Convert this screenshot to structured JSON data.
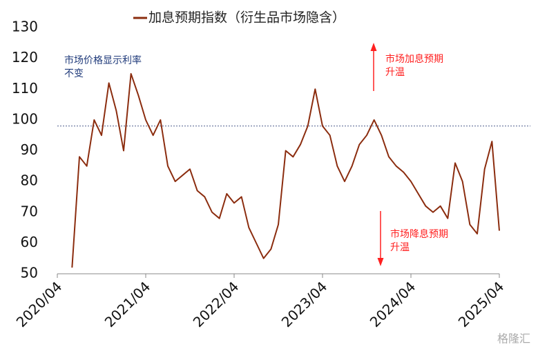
{
  "chart_data": {
    "type": "line",
    "series": [
      {
        "name": "加息预期指数（衍生品市场隐含）",
        "color": "#8b2c0e",
        "values": [
          52,
          88,
          85,
          100,
          95,
          112,
          103,
          90,
          115,
          108,
          100,
          95,
          100,
          85,
          80,
          82,
          84,
          77,
          75,
          70,
          68,
          76,
          73,
          75,
          65,
          60,
          55,
          58,
          66,
          90,
          88,
          92,
          98,
          110,
          98,
          95,
          85,
          80,
          85,
          92,
          95,
          100,
          95,
          88,
          85,
          83,
          80,
          76,
          72,
          70,
          72,
          68,
          86,
          80,
          66,
          63,
          84,
          93,
          64
        ]
      }
    ],
    "x": [
      "2020/06",
      "2020/07",
      "2020/08",
      "2020/09",
      "2020/10",
      "2020/11",
      "2020/12",
      "2021/01",
      "2021/02",
      "2021/03",
      "2021/04",
      "2021/05",
      "2021/06",
      "2021/07",
      "2021/08",
      "2021/09",
      "2021/10",
      "2021/11",
      "2021/12",
      "2022/01",
      "2022/02",
      "2022/03",
      "2022/04",
      "2022/05",
      "2022/06",
      "2022/07",
      "2022/08",
      "2022/09",
      "2022/10",
      "2022/11",
      "2022/12",
      "2023/01",
      "2023/02",
      "2023/03",
      "2023/04",
      "2023/05",
      "2023/06",
      "2023/07",
      "2023/08",
      "2023/09",
      "2023/10",
      "2023/11",
      "2023/12",
      "2024/01",
      "2024/02",
      "2024/03",
      "2024/04",
      "2024/05",
      "2024/06",
      "2024/07",
      "2024/08",
      "2024/09",
      "2024/10",
      "2024/11",
      "2024/12",
      "2025/01",
      "2025/02",
      "2025/03",
      "2025/04"
    ],
    "xlim": [
      "2020/04",
      "2025/04"
    ],
    "xticks": [
      "2020/04",
      "2021/04",
      "2022/04",
      "2023/04",
      "2024/04",
      "2025/04"
    ],
    "ylim": [
      50,
      130
    ],
    "yticks": [
      50,
      60,
      70,
      80,
      90,
      100,
      110,
      120,
      130
    ],
    "reference_line": 98,
    "annotations": [
      {
        "lines": [
          "市场价格显示利率",
          "不变"
        ],
        "color": "#1f3a7a"
      },
      {
        "lines": [
          "市场加息预期",
          "升温"
        ],
        "color": "#ff2020"
      },
      {
        "lines": [
          "市场降息预期",
          "升温"
        ],
        "color": "#ff2020"
      }
    ],
    "watermark": "格隆汇"
  }
}
